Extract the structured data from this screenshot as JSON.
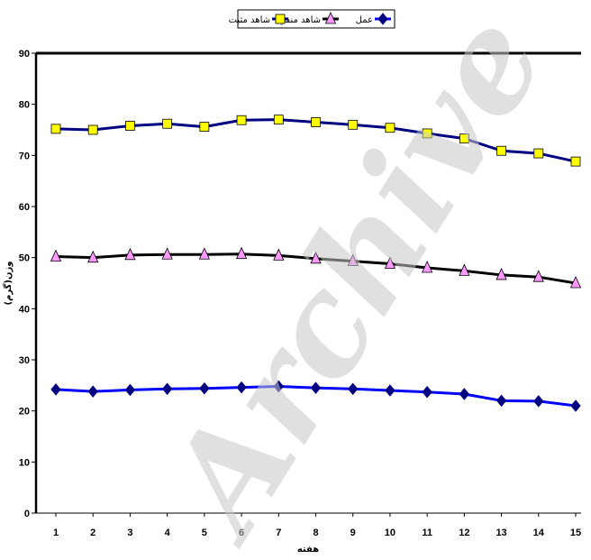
{
  "chart_data": {
    "type": "line",
    "xlabel": "هفته",
    "ylabel": "وزن(گرم)",
    "x": [
      1,
      2,
      3,
      4,
      5,
      6,
      7,
      8,
      9,
      10,
      11,
      12,
      13,
      14,
      15
    ],
    "ylim": [
      0,
      90
    ],
    "yticks": [
      0,
      10,
      20,
      30,
      40,
      50,
      60,
      70,
      80,
      90
    ],
    "grid": false,
    "legend_position": "top",
    "series": [
      {
        "name": "عمل",
        "color": "#0000ff",
        "marker": "diamond",
        "marker_color": "#000080",
        "values": [
          24.2,
          23.8,
          24.1,
          24.3,
          24.4,
          24.6,
          24.8,
          24.5,
          24.3,
          24.0,
          23.7,
          23.3,
          22.0,
          21.9,
          21.0
        ]
      },
      {
        "name": "شاهد منفي",
        "color": "#000000",
        "marker": "triangle",
        "marker_color": "#ff99ff",
        "values": [
          50.2,
          50.0,
          50.5,
          50.6,
          50.6,
          50.7,
          50.4,
          49.8,
          49.3,
          48.8,
          48.0,
          47.4,
          46.6,
          46.2,
          45.0
        ]
      },
      {
        "name": "شاهد مثبت",
        "color": "#000080",
        "marker": "square",
        "marker_color": "#ffff00",
        "values": [
          75.2,
          75.0,
          75.8,
          76.2,
          75.6,
          76.9,
          77.0,
          76.5,
          76.0,
          75.4,
          74.3,
          73.3,
          70.9,
          70.4,
          68.8
        ]
      }
    ]
  },
  "watermark": "Archive"
}
